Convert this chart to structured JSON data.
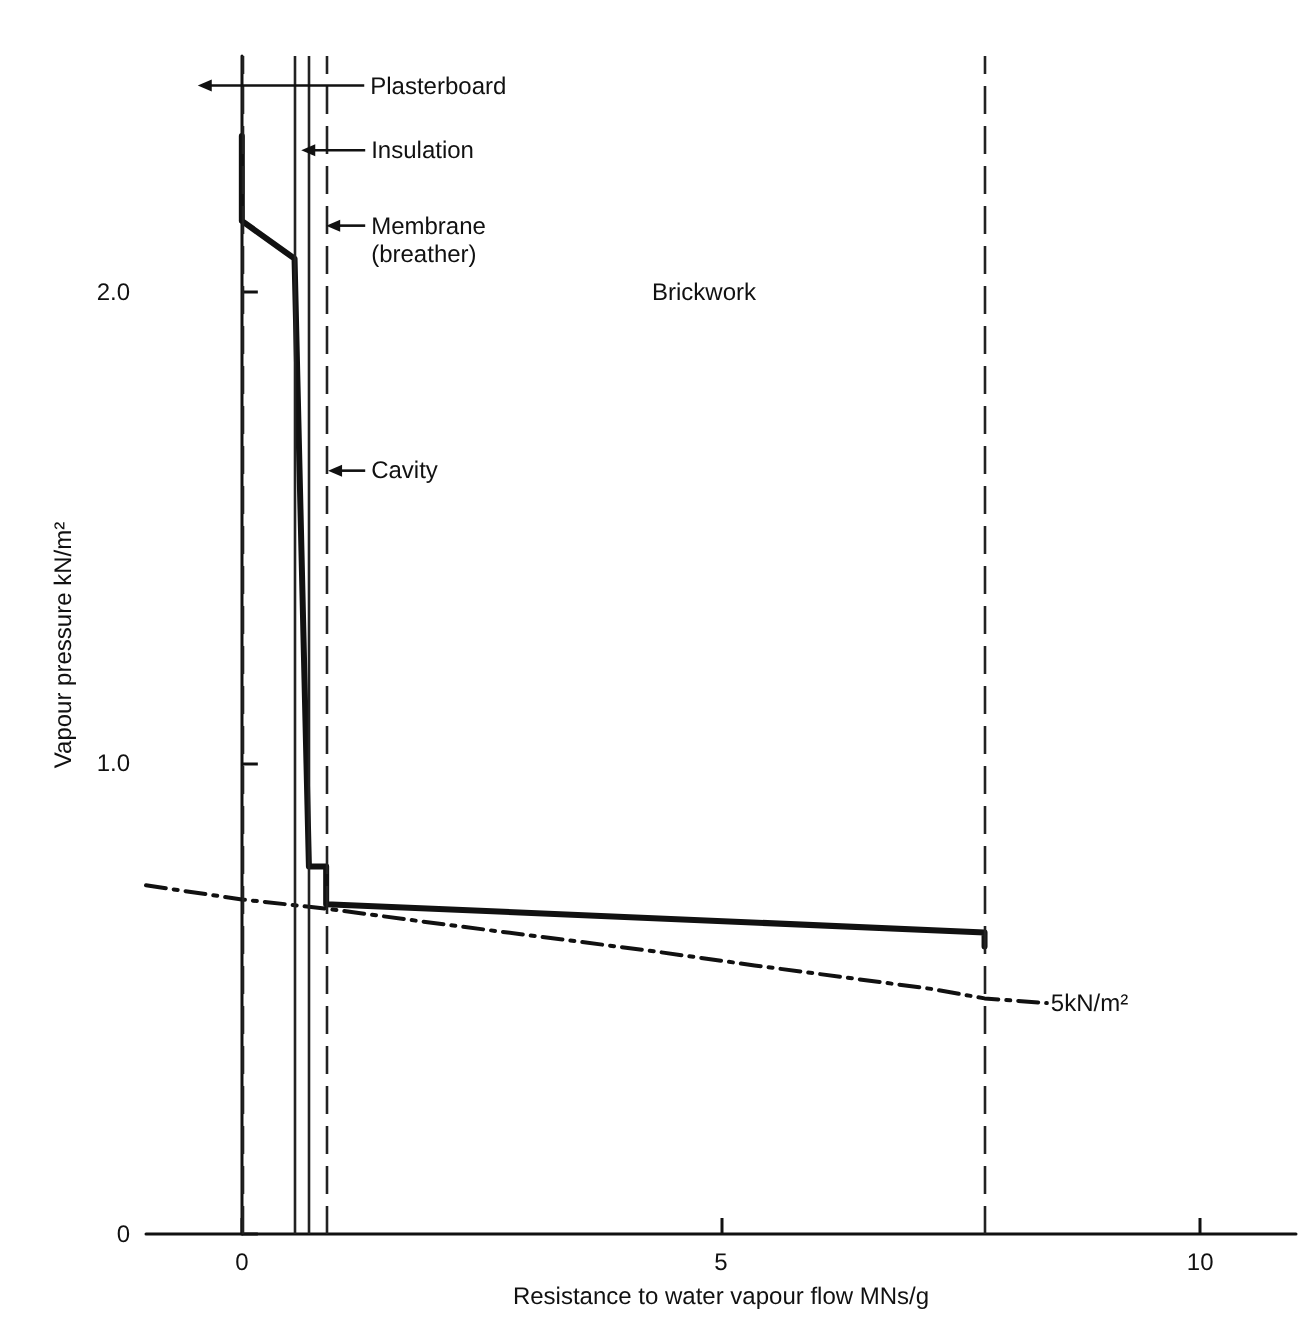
{
  "chart_data": {
    "type": "line",
    "xlabel": "Resistance to water vapour flow MNs/g",
    "ylabel": "Vapour pressure kN/m²",
    "xlim": [
      -1,
      11
    ],
    "xticks": [
      0,
      5,
      10
    ],
    "ylim": [
      0,
      2.5
    ],
    "yticks": [
      0,
      {
        "value": 1,
        "label": "1.0"
      },
      {
        "value": 2,
        "label": "2.0"
      }
    ],
    "grid": false,
    "legend": false,
    "marker": "none",
    "series": [
      {
        "color": "#111111",
        "line_style": "solid",
        "x": [
          0,
          0,
          0.55,
          0.7,
          0.88,
          0.88,
          7.75,
          7.75
        ],
        "values": [
          2.33,
          2.15,
          2.07,
          0.78,
          0.78,
          0.7,
          0.64,
          0.61
        ]
      },
      {
        "name": "5kN/m²",
        "color": "#111111",
        "line_style": "dashed",
        "x": [
          -1,
          0,
          0.9,
          2,
          4.3,
          5.35,
          7.2,
          7.75,
          8.4
        ],
        "values": [
          0.74,
          0.71,
          0.69,
          0.66,
          0.6,
          0.57,
          0.52,
          0.5,
          0.49
        ]
      }
    ],
    "ref_lines": [
      {
        "axis": "x",
        "value": 0,
        "line_style": "dashed",
        "color": "#222222"
      },
      {
        "axis": "x",
        "value": 0.55,
        "line_style": "solid",
        "color": "#222222"
      },
      {
        "axis": "x",
        "value": 0.7,
        "line_style": "solid",
        "color": "#222222"
      },
      {
        "axis": "x",
        "value": 0.88,
        "line_style": "dashed",
        "color": "#222222"
      },
      {
        "axis": "x",
        "value": 7.75,
        "line_style": "dashed",
        "color": "#222222"
      }
    ],
    "annotations": [
      "Plasterboard",
      {
        "text": "Insulation",
        "x": 0.62,
        "y": 2.3
      },
      {
        "text": "Membrane (breather)",
        "x": 0.88,
        "y": 2.14
      },
      {
        "text": "Cavity",
        "x": 0.9,
        "y": 1.62
      },
      "Brickwork"
    ]
  }
}
